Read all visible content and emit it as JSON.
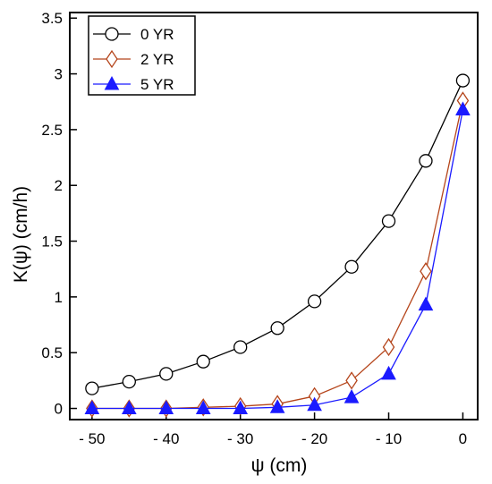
{
  "chart_data": {
    "type": "line",
    "xlabel": "ψ (cm)",
    "ylabel": "K(ψ) (cm/h)",
    "xlim": [
      -53,
      2
    ],
    "ylim": [
      -0.1,
      3.55
    ],
    "x_ticks": [
      -50,
      -40,
      -30,
      -20,
      -10,
      0
    ],
    "x_tick_labels": [
      "- 50",
      "- 40",
      "- 30",
      "- 20",
      "- 10",
      "0"
    ],
    "y_ticks": [
      0,
      0.5,
      1,
      1.5,
      2,
      2.5,
      3,
      3.5
    ],
    "y_tick_labels": [
      "0",
      "0.5",
      "1",
      "1.5",
      "2",
      "2.5",
      "3",
      "3.5"
    ],
    "grid": false,
    "legend_position": "top-left",
    "x": [
      -50,
      -45,
      -40,
      -35,
      -30,
      -25,
      -20,
      -15,
      -10,
      -5,
      0
    ],
    "series": [
      {
        "name": "0 YR",
        "marker": "circle",
        "color": "#000000",
        "fill": "#ffffff",
        "values": [
          0.18,
          0.24,
          0.31,
          0.42,
          0.55,
          0.72,
          0.96,
          1.27,
          1.68,
          2.22,
          2.94
        ]
      },
      {
        "name": "2 YR",
        "marker": "diamond",
        "color": "#b5451b",
        "fill": "#ffffff",
        "values": [
          0.0,
          0.0,
          0.0,
          0.01,
          0.02,
          0.04,
          0.11,
          0.25,
          0.55,
          1.23,
          2.76
        ]
      },
      {
        "name": "5 YR",
        "marker": "triangle",
        "color": "#1a1aff",
        "fill": "#1a1aff",
        "values": [
          0.0,
          0.0,
          0.0,
          0.0,
          0.0,
          0.01,
          0.03,
          0.1,
          0.31,
          0.93,
          2.68
        ]
      }
    ]
  }
}
